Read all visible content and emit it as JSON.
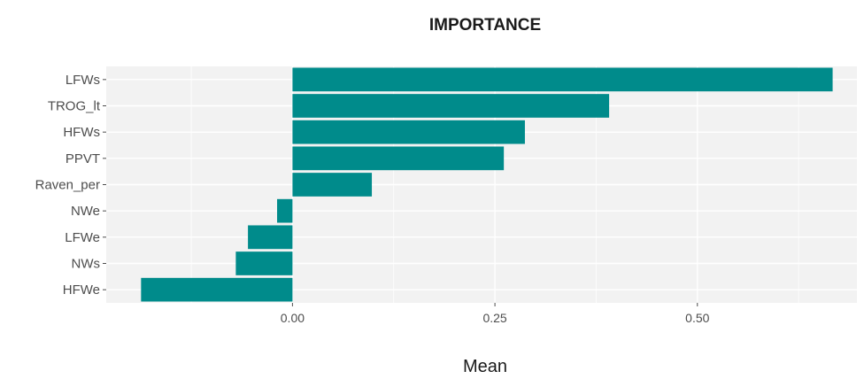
{
  "chart_data": {
    "type": "bar",
    "orientation": "horizontal",
    "title": "IMPORTANCE",
    "xlabel": "Mean",
    "ylabel": "",
    "categories": [
      "LFWs",
      "TROG_lt",
      "HFWs",
      "PPVT",
      "Raven_per",
      "NWe",
      "LFWe",
      "NWs",
      "HFWe"
    ],
    "values": [
      0.667,
      0.391,
      0.287,
      0.261,
      0.098,
      -0.019,
      -0.055,
      -0.07,
      -0.187
    ],
    "xlim": [
      -0.23,
      0.697
    ],
    "xticks": [
      0.0,
      0.25,
      0.5
    ],
    "xtick_labels": [
      "0.00",
      "0.25",
      "0.50"
    ],
    "grid": true,
    "legend": "none",
    "colors": {
      "bar": "#008b8b",
      "panel": "#f2f2f2",
      "grid": "#ffffff"
    }
  }
}
